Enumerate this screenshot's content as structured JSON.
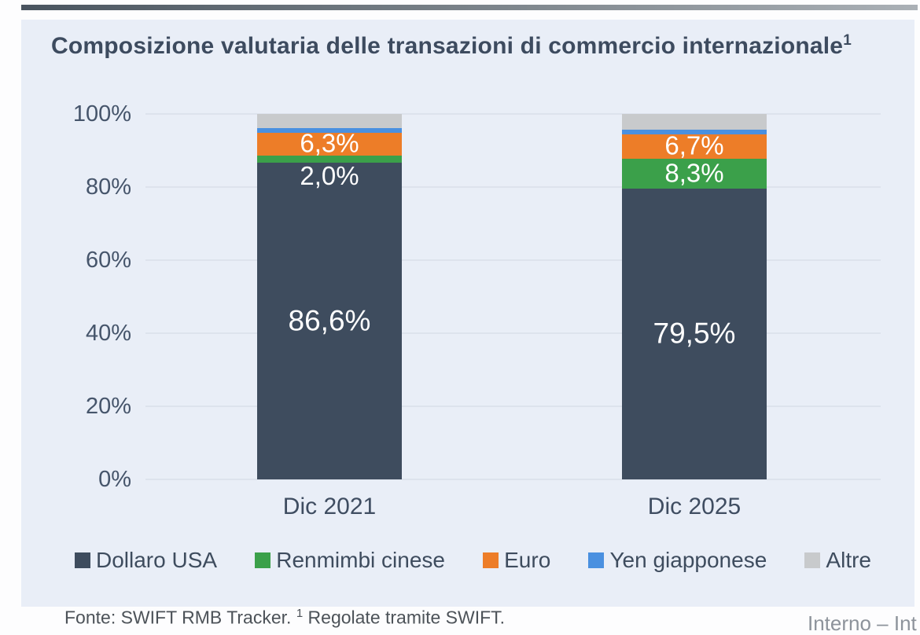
{
  "title": {
    "text": "Composizione valutaria delle transazioni di commercio internazionale",
    "superscript": "1"
  },
  "footnote": {
    "prefix": "Fonte: SWIFT RMB Tracker.",
    "superscript": "1",
    "suffix": "Regolate tramite SWIFT."
  },
  "footer": {
    "classification": "Interno – Int"
  },
  "colors": {
    "panel_background": "#e9eef7",
    "page_background": "#fdfdfe",
    "title_text": "#3d4b5f",
    "axis_text": "#46556b",
    "gridline": "#dde3ed",
    "bar_label_text": "#ffffff",
    "top_rule_start": "#49545f",
    "top_rule_end": "#aab0b6"
  },
  "chart_data": {
    "type": "bar",
    "subtype": "stacked-100-percent",
    "title": "Composizione valutaria delle transazioni di commercio internazionale",
    "categories": [
      "Dic 2021",
      "Dic 2025"
    ],
    "series": [
      {
        "name": "Dollaro USA",
        "color": "#3e4c5e",
        "values": [
          86.6,
          79.5
        ],
        "labels": [
          "86,6%",
          "79,5%"
        ]
      },
      {
        "name": "Renmimbi cinese",
        "color": "#3ba04a",
        "values": [
          2.0,
          8.3
        ],
        "labels": [
          "2,0%",
          "8,3%"
        ]
      },
      {
        "name": "Euro",
        "color": "#ed7d28",
        "values": [
          6.3,
          6.7
        ],
        "labels": [
          "6,3%",
          "6,7%"
        ]
      },
      {
        "name": "Yen giapponese",
        "color": "#4a90e0",
        "values": [
          1.2,
          1.3
        ],
        "labels": [
          null,
          null
        ]
      },
      {
        "name": "Altre",
        "color": "#c8cacc",
        "values": [
          3.9,
          4.2
        ],
        "labels": [
          null,
          null
        ]
      }
    ],
    "y_ticks": [
      "100%",
      "80%",
      "60%",
      "40%",
      "20%",
      "0%"
    ],
    "ylim": [
      0,
      100
    ],
    "xlabel": "",
    "ylabel": "",
    "grid": "horizontal",
    "legend_position": "bottom"
  }
}
